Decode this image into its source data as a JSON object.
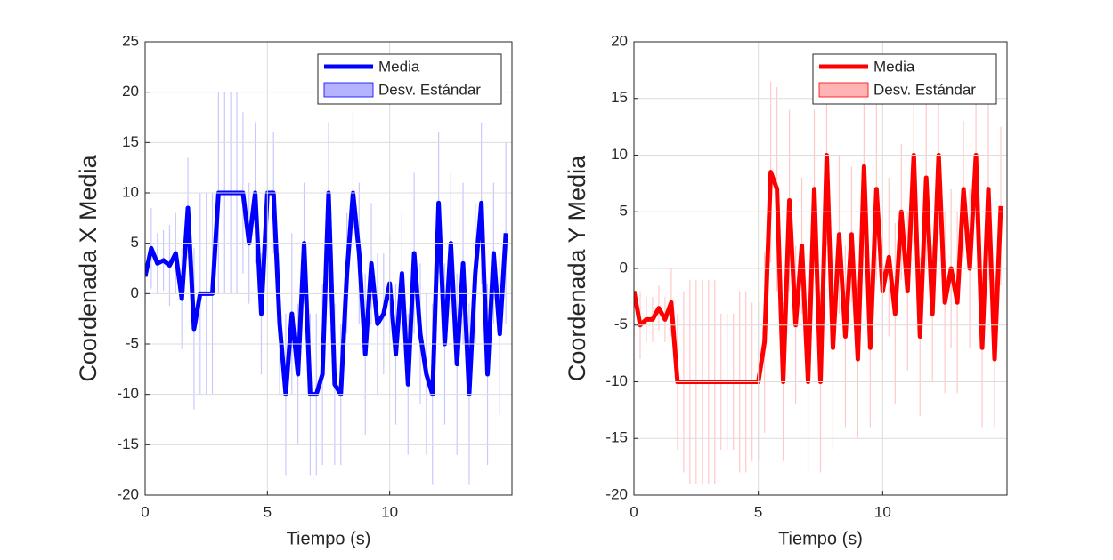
{
  "chart_data": [
    {
      "type": "line",
      "xlabel": "Tiempo (s)",
      "ylabel": "Coordenada X Media",
      "x": [
        0,
        0.25,
        0.5,
        0.75,
        1,
        1.25,
        1.5,
        1.75,
        2,
        2.25,
        2.5,
        2.75,
        3,
        3.25,
        3.5,
        3.75,
        4,
        4.25,
        4.5,
        4.75,
        5,
        5.25,
        5.5,
        5.75,
        6,
        6.25,
        6.5,
        6.75,
        7,
        7.25,
        7.5,
        7.75,
        8,
        8.25,
        8.5,
        8.75,
        9,
        9.25,
        9.5,
        9.75,
        10,
        10.25,
        10.5,
        10.75,
        11,
        11.25,
        11.5,
        11.75,
        12,
        12.25,
        12.5,
        12.75,
        13,
        13.25,
        13.5,
        13.75,
        14,
        14.25,
        14.5,
        14.75
      ],
      "series": [
        {
          "name": "Media",
          "color": "#0000ff",
          "values": [
            1.7,
            4.5,
            3,
            3.3,
            2.8,
            4,
            -0.5,
            8.5,
            -3.5,
            0,
            0,
            0,
            10,
            10,
            10,
            10,
            10,
            5,
            10,
            -2,
            10,
            10,
            -3,
            -10,
            -2,
            -8,
            5,
            -10,
            -10,
            -8,
            10,
            -9,
            -10,
            2,
            10,
            4,
            -6,
            3,
            -3,
            -2,
            1,
            -6,
            2,
            -9,
            4,
            -4,
            -8,
            -10,
            9,
            -5,
            5,
            -7,
            3,
            -10,
            2,
            9,
            -8,
            4,
            -4,
            6
          ]
        },
        {
          "name": "Desv. Estándar",
          "color": "#b3b3ff",
          "values": [
            3,
            4,
            3,
            3,
            4,
            4,
            5,
            5,
            8,
            10,
            10,
            10,
            10,
            10,
            10,
            10,
            8,
            6,
            7,
            6,
            5,
            6,
            7,
            8,
            8,
            7,
            6,
            8,
            8,
            9,
            7,
            8,
            7,
            6,
            8,
            7,
            8,
            6,
            7,
            6,
            5,
            7,
            6,
            7,
            8,
            7,
            8,
            9,
            7,
            8,
            7,
            9,
            8,
            9,
            7,
            8,
            9,
            7,
            8,
            9
          ]
        }
      ],
      "xlim": [
        0,
        15
      ],
      "ylim": [
        -20,
        25
      ],
      "xticks": [
        0,
        5,
        10
      ],
      "yticks": [
        -20,
        -15,
        -10,
        -5,
        0,
        5,
        10,
        15,
        20,
        25
      ],
      "grid": true,
      "legend": "upper right"
    },
    {
      "type": "line",
      "xlabel": "Tiempo (s)",
      "ylabel": "Coordenada Y Media",
      "x": [
        0,
        0.25,
        0.5,
        0.75,
        1,
        1.25,
        1.5,
        1.75,
        2,
        2.25,
        2.5,
        2.75,
        3,
        3.25,
        3.5,
        3.75,
        4,
        4.25,
        4.5,
        4.75,
        5,
        5.25,
        5.5,
        5.75,
        6,
        6.25,
        6.5,
        6.75,
        7,
        7.25,
        7.5,
        7.75,
        8,
        8.25,
        8.5,
        8.75,
        9,
        9.25,
        9.5,
        9.75,
        10,
        10.25,
        10.5,
        10.75,
        11,
        11.25,
        11.5,
        11.75,
        12,
        12.25,
        12.5,
        12.75,
        13,
        13.25,
        13.5,
        13.75,
        14,
        14.25,
        14.5,
        14.75
      ],
      "series": [
        {
          "name": "Media",
          "color": "#ff0000",
          "values": [
            -2,
            -5,
            -4.5,
            -4.5,
            -3.5,
            -4.5,
            -3,
            -10,
            -10,
            -10,
            -10,
            -10,
            -10,
            -10,
            -10,
            -10,
            -10,
            -10,
            -10,
            -10,
            -10,
            -6.5,
            8.5,
            7,
            -10,
            6,
            -5,
            2,
            -10,
            7,
            -10,
            10,
            -7,
            3,
            -6,
            3,
            -8,
            9,
            -7,
            7,
            -2,
            1,
            -4,
            5,
            -2,
            10,
            -6,
            8,
            -4,
            10,
            -3,
            0,
            -3,
            7,
            0,
            10,
            -7,
            7,
            -8,
            5.5
          ]
        },
        {
          "name": "Desv. Estándar",
          "color": "#ffb3b3",
          "values": [
            4,
            3,
            2,
            2,
            2,
            2,
            3,
            6,
            8,
            9,
            9,
            9,
            9,
            9,
            6,
            6,
            6,
            8,
            8,
            7,
            7,
            8,
            8,
            9,
            7,
            8,
            7,
            6,
            8,
            7,
            8,
            8,
            9,
            7,
            8,
            6,
            7,
            8,
            7,
            8,
            6,
            7,
            8,
            6,
            7,
            8,
            7,
            8,
            6,
            7,
            8,
            7,
            8,
            6,
            7,
            6,
            7,
            8,
            6,
            7
          ]
        }
      ],
      "xlim": [
        0,
        15
      ],
      "ylim": [
        -20,
        20
      ],
      "xticks": [
        0,
        5,
        10
      ],
      "yticks": [
        -20,
        -15,
        -10,
        -5,
        0,
        5,
        10,
        15,
        20
      ],
      "grid": true,
      "legend": "upper right"
    }
  ]
}
